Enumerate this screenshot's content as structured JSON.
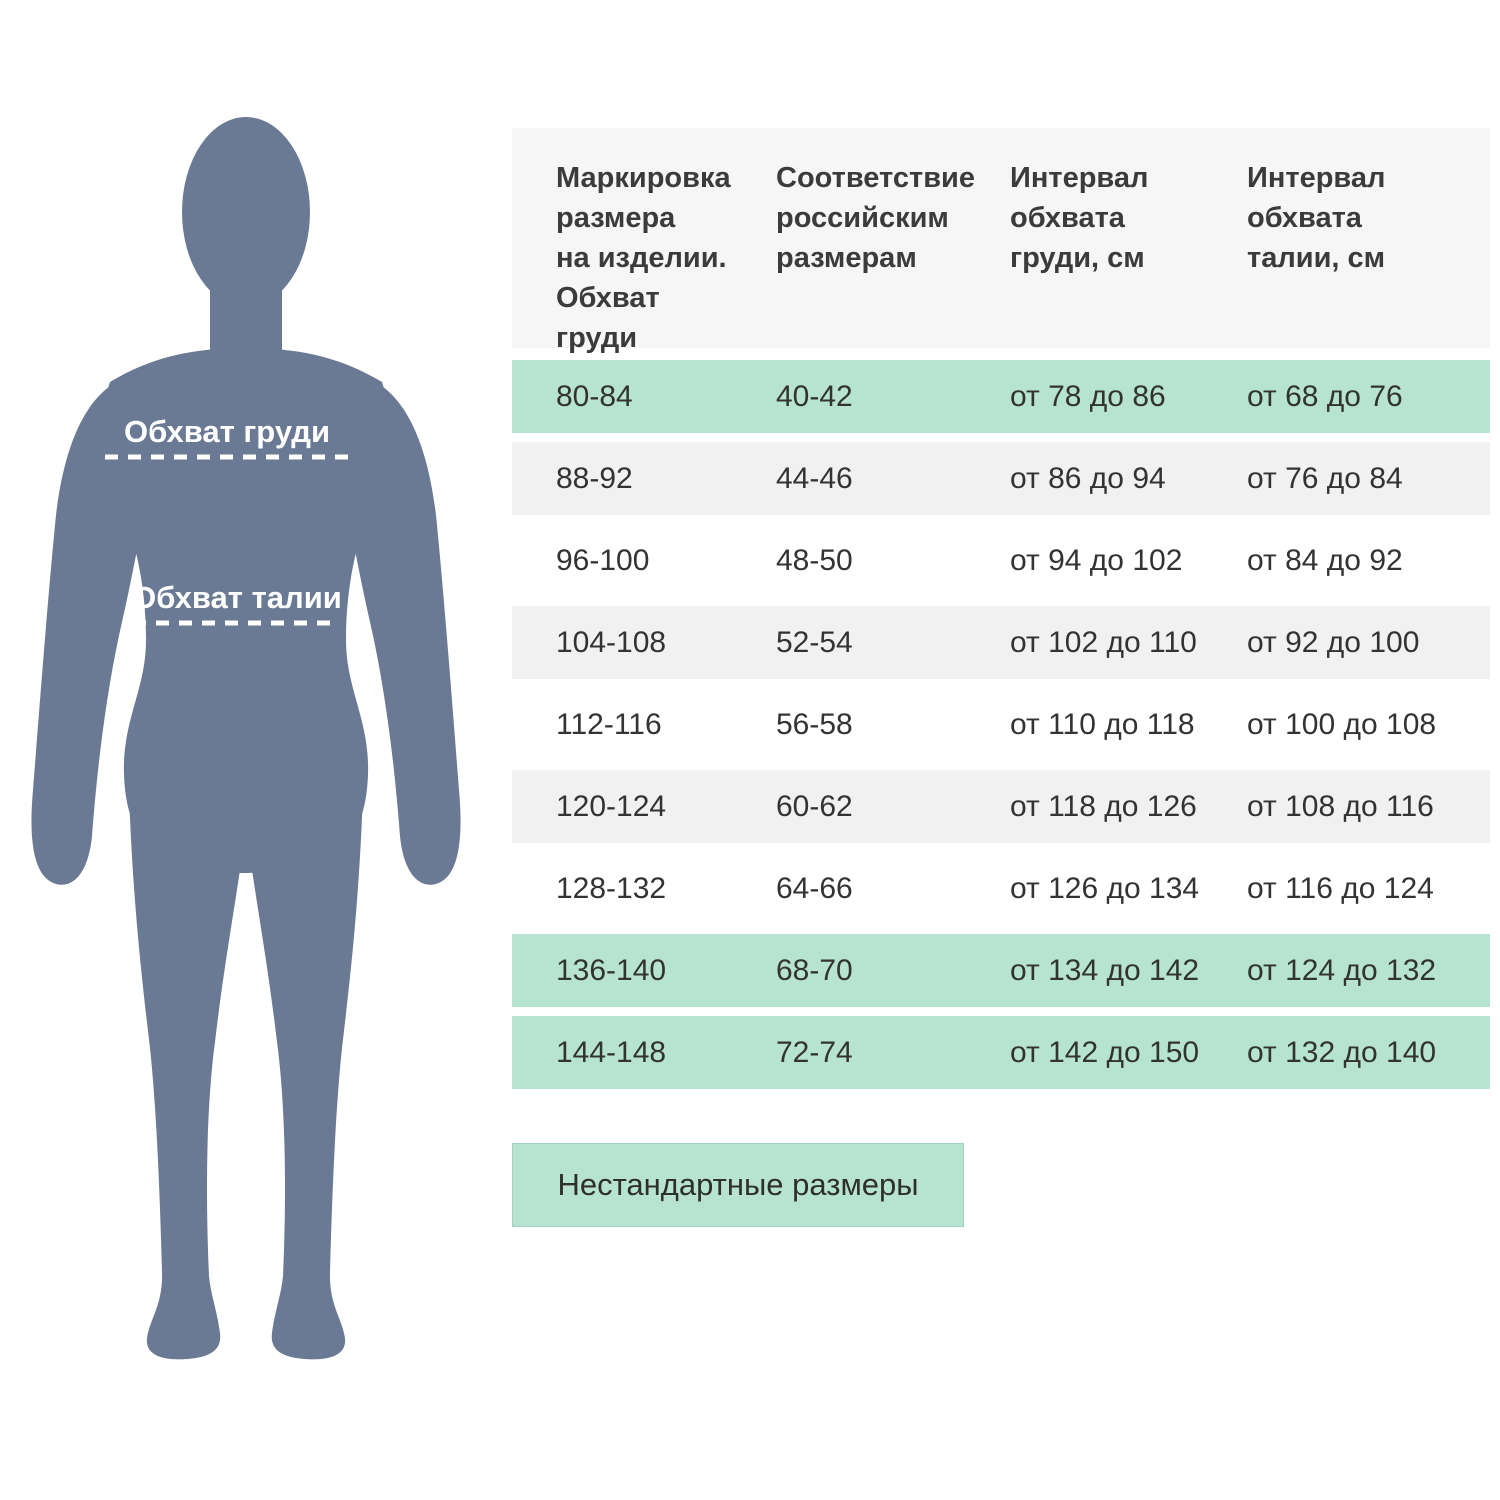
{
  "colors": {
    "green": "#b7e4d1",
    "green-border": "#a0d3bd",
    "gray-row": "#f1f1f1",
    "header-bg": "#f6f6f6",
    "silhouette": "#6b7a94",
    "text": "#333333"
  },
  "figure": {
    "chest_label": "Обхват груди",
    "waist_label": "Обхват талии"
  },
  "chart_data": {
    "type": "table",
    "columns": [
      "Маркировка\nразмера\nна изделии.\nОбхват\nгруди",
      "Соответствие\nроссийским\nразмерам",
      "Интервал\nобхвата\nгруди, см",
      "Интервал\nобхвата\nталии, см"
    ],
    "rows": [
      {
        "marking": "80-84",
        "russian": "40-42",
        "chest": "от 78 до 86",
        "waist": "от 68 до 76",
        "highlight": true
      },
      {
        "marking": "88-92",
        "russian": "44-46",
        "chest": "от 86 до 94",
        "waist": "от 76 до 84",
        "highlight": false
      },
      {
        "marking": "96-100",
        "russian": "48-50",
        "chest": "от 94 до 102",
        "waist": "от 84 до 92",
        "highlight": false
      },
      {
        "marking": "104-108",
        "russian": "52-54",
        "chest": "от 102 до 110",
        "waist": "от 92 до 100",
        "highlight": false
      },
      {
        "marking": "112-116",
        "russian": "56-58",
        "chest": "от 110 до 118",
        "waist": "от 100 до 108",
        "highlight": false
      },
      {
        "marking": "120-124",
        "russian": "60-62",
        "chest": "от 118 до 126",
        "waist": "от 108 до 116",
        "highlight": false
      },
      {
        "marking": "128-132",
        "russian": "64-66",
        "chest": "от 126 до 134",
        "waist": "от 116 до 124",
        "highlight": false
      },
      {
        "marking": "136-140",
        "russian": "68-70",
        "chest": "от 134 до 142",
        "waist": "от 124 до 132",
        "highlight": true
      },
      {
        "marking": "144-148",
        "russian": "72-74",
        "chest": "от 142 до 150",
        "waist": "от 132 до 140",
        "highlight": true
      }
    ],
    "legend": "Нестандартные размеры"
  }
}
